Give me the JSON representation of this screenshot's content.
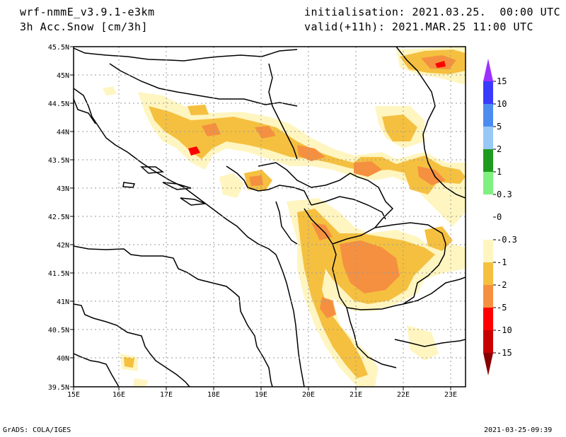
{
  "header": {
    "model": "wrf-nmmE_v3.9.1-e3km",
    "field": "3h Acc.Snow [cm/3h]",
    "init": "initialisation: 2021.03.25.  00:00 UTC",
    "valid": "valid(+11h): 2021.MAR.25 11:00 UTC"
  },
  "footer": {
    "credit": "GrADS: COLA/IGES",
    "timestamp": "2021-03-25-09:39"
  },
  "map": {
    "lon_labels": [
      "15E",
      "16E",
      "17E",
      "18E",
      "19E",
      "20E",
      "21E",
      "22E",
      "23E"
    ],
    "lat_labels": [
      "45.5N",
      "45N",
      "44.5N",
      "44N",
      "43.5N",
      "43N",
      "42.5N",
      "42N",
      "41.5N",
      "41N",
      "40.5N",
      "40N",
      "39.5N"
    ]
  },
  "legend": {
    "labels": [
      "15",
      "10",
      "5",
      "2",
      "1",
      "0.3",
      "0",
      "-0.3",
      "-1",
      "-2",
      "-5",
      "-10",
      "-15"
    ],
    "colors": [
      "#9b30ff",
      "#3a3aff",
      "#4b8cf0",
      "#98c8f5",
      "#1e9b1e",
      "#80f080",
      "#ffffff",
      "#ffffff",
      "#fff5c0",
      "#f5c040",
      "#f59040",
      "#ff0000",
      "#c80000",
      "#880000"
    ]
  }
}
